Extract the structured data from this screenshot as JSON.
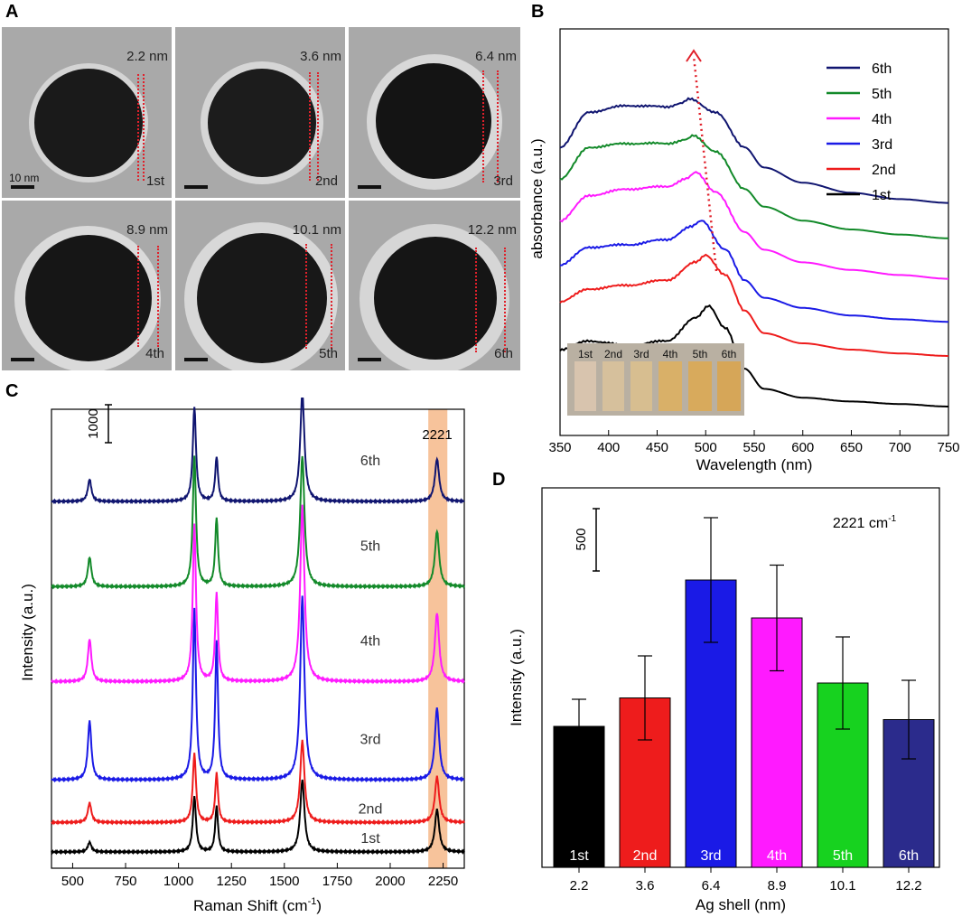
{
  "panels": {
    "a": "A",
    "b": "B",
    "c": "C",
    "d": "D"
  },
  "tem": {
    "scale_label": "10 nm",
    "cells": [
      {
        "size": "2.2 nm",
        "order": "1st"
      },
      {
        "size": "3.6 nm",
        "order": "2nd"
      },
      {
        "size": "6.4 nm",
        "order": "3rd"
      },
      {
        "size": "8.9 nm",
        "order": "4th"
      },
      {
        "size": "10.1 nm",
        "order": "5th"
      },
      {
        "size": "12.2 nm",
        "order": "6th"
      }
    ]
  },
  "colors": {
    "1st": "#000000",
    "2nd": "#ee1c1c",
    "3rd": "#1a1ae6",
    "4th": "#ff1aff",
    "5th": "#138a2a",
    "6th": "#101570",
    "bar_5th": "#17d21f",
    "bar_6th": "#2b2b8c",
    "highlight": "#f6b88a"
  },
  "chart_data": [
    {
      "id": "B",
      "type": "line",
      "title": "",
      "xlabel": "Wavelength (nm)",
      "ylabel": "absorbance (a.u.)",
      "xlim": [
        350,
        750
      ],
      "xticks": [
        "350",
        "400",
        "450",
        "500",
        "550",
        "600",
        "650",
        "700",
        "750"
      ],
      "legend": [
        "6th",
        "5th",
        "4th",
        "3rd",
        "2nd",
        "1st"
      ],
      "inset_labels": [
        "1st",
        "2nd",
        "3rd",
        "4th",
        "5th",
        "6th"
      ],
      "series": [
        {
          "name": "1st",
          "offset": 0,
          "peak": 503,
          "values": [
            [
              350,
              0.45
            ],
            [
              380,
              0.52
            ],
            [
              420,
              0.48
            ],
            [
              460,
              0.52
            ],
            [
              490,
              0.7
            ],
            [
              503,
              0.8
            ],
            [
              520,
              0.62
            ],
            [
              540,
              0.3
            ],
            [
              560,
              0.14
            ],
            [
              600,
              0.07
            ],
            [
              650,
              0.04
            ],
            [
              700,
              0.02
            ],
            [
              750,
              0.0
            ]
          ]
        },
        {
          "name": "2nd",
          "offset": 0.38,
          "peak": 500,
          "values": [
            [
              350,
              0.45
            ],
            [
              380,
              0.55
            ],
            [
              420,
              0.58
            ],
            [
              460,
              0.62
            ],
            [
              490,
              0.76
            ],
            [
              500,
              0.82
            ],
            [
              520,
              0.66
            ],
            [
              540,
              0.38
            ],
            [
              560,
              0.2
            ],
            [
              600,
              0.12
            ],
            [
              650,
              0.07
            ],
            [
              700,
              0.04
            ],
            [
              750,
              0.02
            ]
          ]
        },
        {
          "name": "3rd",
          "offset": 0.62,
          "peak": 496,
          "values": [
            [
              350,
              0.5
            ],
            [
              380,
              0.64
            ],
            [
              420,
              0.66
            ],
            [
              460,
              0.7
            ],
            [
              485,
              0.8
            ],
            [
              496,
              0.85
            ],
            [
              520,
              0.62
            ],
            [
              540,
              0.38
            ],
            [
              560,
              0.24
            ],
            [
              600,
              0.16
            ],
            [
              650,
              0.1
            ],
            [
              700,
              0.07
            ],
            [
              750,
              0.05
            ]
          ]
        },
        {
          "name": "4th",
          "offset": 0.92,
          "peak": 490,
          "values": [
            [
              350,
              0.55
            ],
            [
              380,
              0.75
            ],
            [
              420,
              0.8
            ],
            [
              460,
              0.82
            ],
            [
              480,
              0.88
            ],
            [
              490,
              0.93
            ],
            [
              510,
              0.78
            ],
            [
              540,
              0.46
            ],
            [
              560,
              0.32
            ],
            [
              600,
              0.22
            ],
            [
              650,
              0.16
            ],
            [
              700,
              0.12
            ],
            [
              750,
              0.09
            ]
          ]
        },
        {
          "name": "5th",
          "offset": 1.2,
          "peak": 487,
          "values": [
            [
              350,
              0.6
            ],
            [
              380,
              0.85
            ],
            [
              420,
              0.88
            ],
            [
              460,
              0.88
            ],
            [
              480,
              0.91
            ],
            [
              487,
              0.94
            ],
            [
              510,
              0.82
            ],
            [
              540,
              0.52
            ],
            [
              560,
              0.38
            ],
            [
              600,
              0.27
            ],
            [
              650,
              0.2
            ],
            [
              700,
              0.16
            ],
            [
              750,
              0.13
            ]
          ]
        },
        {
          "name": "6th",
          "offset": 1.45,
          "peak": 483,
          "values": [
            [
              350,
              0.6
            ],
            [
              380,
              0.88
            ],
            [
              420,
              0.93
            ],
            [
              460,
              0.92
            ],
            [
              475,
              0.95
            ],
            [
              483,
              0.98
            ],
            [
              510,
              0.88
            ],
            [
              540,
              0.6
            ],
            [
              560,
              0.44
            ],
            [
              600,
              0.32
            ],
            [
              650,
              0.24
            ],
            [
              700,
              0.19
            ],
            [
              750,
              0.16
            ]
          ]
        }
      ]
    },
    {
      "id": "C",
      "type": "line",
      "xlabel": "Raman Shift (cm",
      "xlabel_sup": "-1",
      "xlabel_end": ")",
      "ylabel": "Intensity (a.u.)",
      "xlim": [
        400,
        2350
      ],
      "xticks": [
        "500",
        "750",
        "1000",
        "1250",
        "1500",
        "1750",
        "2000",
        "2250"
      ],
      "scale_bar_label": "1000",
      "highlight_label": "2221",
      "highlight_range": [
        2180,
        2270
      ],
      "peak_positions": [
        580,
        1075,
        1180,
        1585,
        2221
      ],
      "series": [
        {
          "name": "1st",
          "baseline": 0,
          "peaks": [
            150,
            850,
            700,
            1100,
            650
          ]
        },
        {
          "name": "2nd",
          "baseline": 450,
          "peaks": [
            300,
            1050,
            750,
            1250,
            700
          ]
        },
        {
          "name": "3rd",
          "baseline": 1100,
          "peaks": [
            900,
            2600,
            2100,
            2800,
            1100
          ]
        },
        {
          "name": "4th",
          "baseline": 2600,
          "peaks": [
            650,
            2400,
            1350,
            2700,
            1050
          ]
        },
        {
          "name": "5th",
          "baseline": 4050,
          "peaks": [
            450,
            2000,
            1050,
            2000,
            850
          ]
        },
        {
          "name": "6th",
          "baseline": 5350,
          "peaks": [
            340,
            1450,
            680,
            1650,
            650
          ]
        }
      ]
    },
    {
      "id": "D",
      "type": "bar",
      "xlabel": "Ag shell (nm)",
      "ylabel": "Intensity (a.u.)",
      "annotation": "2221 cm",
      "annotation_sup": "-1",
      "scale_bar_label": "500",
      "categories": [
        "2.2",
        "3.6",
        "6.4",
        "8.9",
        "10.1",
        "12.2"
      ],
      "bar_labels": [
        "1st",
        "2nd",
        "3rd",
        "4th",
        "5th",
        "6th"
      ],
      "values": [
        520,
        625,
        1060,
        920,
        680,
        545
      ],
      "errors": [
        100,
        155,
        230,
        195,
        170,
        145
      ],
      "ylim": [
        0,
        1400
      ]
    }
  ]
}
